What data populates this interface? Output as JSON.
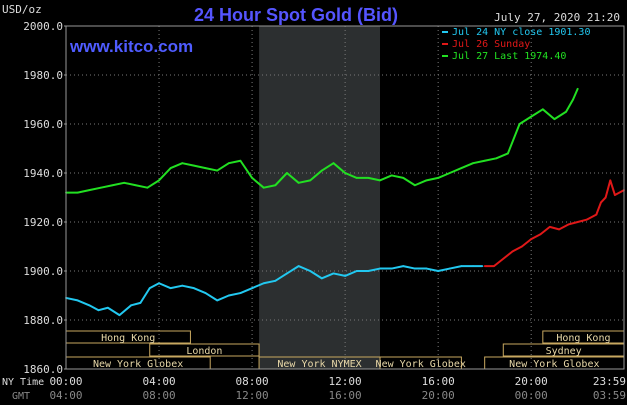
{
  "header": {
    "unit_label": "USD/oz",
    "title": "24 Hour Spot Gold (Bid)",
    "datetime": "July 27, 2020 21:20",
    "website": "www.kitco.com"
  },
  "legend": [
    {
      "label": "Jul 24 NY close 1901.30",
      "color": "#22c8f0"
    },
    {
      "label": "Jul 26 Sunday",
      "color": "#e01818"
    },
    {
      "label": "Jul 27 Last 1974.40",
      "color": "#22e022"
    }
  ],
  "colors": {
    "title": "#5555ff",
    "website": "#4f5cff",
    "axis_text": "#dddddd",
    "grid": "#7a7a7a",
    "shade": "#2c2f30",
    "session_border": "#c8a860"
  },
  "time_rows": {
    "ny_label": "NY Time",
    "gmt_label": "GMT",
    "ny_ticks": [
      "00:00",
      "04:00",
      "08:00",
      "12:00",
      "16:00",
      "20:00",
      "23:59"
    ],
    "gmt_ticks": [
      "04:00",
      "08:00",
      "12:00",
      "16:00",
      "20:00",
      "00:00",
      "03:59"
    ]
  },
  "sessions": [
    {
      "label": "Hong Kong",
      "row": 0,
      "start": 0,
      "end": 5.35
    },
    {
      "label": "Hong Kong",
      "row": 0,
      "start": 20.5,
      "end": 23.99
    },
    {
      "label": "London",
      "row": 1,
      "start": 3.6,
      "end": 8.3
    },
    {
      "label": "Sydney",
      "row": 1,
      "start": 18.8,
      "end": 23.99
    },
    {
      "label": "New York Globex",
      "row": 2,
      "start": 0,
      "end": 6.2
    },
    {
      "label": "New York NYMEX",
      "row": 2,
      "start": 8.3,
      "end": 13.5
    },
    {
      "label": "New York Globex",
      "row": 2,
      "start": 13.5,
      "end": 17.0
    },
    {
      "label": "New York Globex",
      "row": 2,
      "start": 18.0,
      "end": 23.99
    }
  ],
  "chart_data": {
    "type": "line",
    "title": "24 Hour Spot Gold (Bid)",
    "ylabel": "USD/oz",
    "xlabel": "NY Time",
    "xlim": [
      0,
      23.99
    ],
    "ylim": [
      1860,
      2000
    ],
    "y_ticks": [
      "1860.0",
      "1880.0",
      "1900.0",
      "1920.0",
      "1940.0",
      "1960.0",
      "1980.0",
      "2000.0"
    ],
    "grid": true,
    "legend_position": "top-right",
    "shaded_region": [
      8.3,
      13.5
    ],
    "series": [
      {
        "name": "Jul 24 NY close 1901.30",
        "color": "#22c8f0",
        "x": [
          0,
          0.5,
          1.0,
          1.4,
          1.8,
          2.3,
          2.8,
          3.2,
          3.6,
          4.0,
          4.5,
          5.0,
          5.5,
          6.0,
          6.5,
          7.0,
          7.5,
          8.0,
          8.5,
          9.0,
          9.5,
          10.0,
          10.5,
          11.0,
          11.5,
          12.0,
          12.5,
          13.0,
          13.5,
          14.0,
          14.5,
          15.0,
          15.5,
          16.0,
          16.5,
          17.0,
          17.5,
          17.9
        ],
        "y": [
          1889,
          1888,
          1886,
          1884,
          1885,
          1882,
          1886,
          1887,
          1893,
          1895,
          1893,
          1894,
          1893,
          1891,
          1888,
          1890,
          1891,
          1893,
          1895,
          1896,
          1899,
          1902,
          1900,
          1897,
          1899,
          1898,
          1900,
          1900,
          1901,
          1901,
          1902,
          1901,
          1901,
          1900,
          1901,
          1902,
          1902,
          1902
        ]
      },
      {
        "name": "Jul 26 Sunday",
        "color": "#e01818",
        "x": [
          18.0,
          18.4,
          18.8,
          19.2,
          19.6,
          20.0,
          20.4,
          20.8,
          21.2,
          21.6,
          22.0,
          22.4,
          22.8,
          23.0,
          23.2,
          23.4,
          23.6,
          23.99
        ],
        "y": [
          1902,
          1902,
          1905,
          1908,
          1910,
          1913,
          1915,
          1918,
          1917,
          1919,
          1920,
          1921,
          1923,
          1928,
          1930,
          1937,
          1931,
          1933
        ]
      },
      {
        "name": "Jul 27 Last 1974.40",
        "color": "#22e022",
        "x": [
          0,
          0.5,
          1.0,
          1.5,
          2.0,
          2.5,
          3.0,
          3.5,
          4.0,
          4.5,
          5.0,
          5.5,
          6.0,
          6.5,
          7.0,
          7.5,
          8.0,
          8.5,
          9.0,
          9.5,
          10.0,
          10.5,
          11.0,
          11.5,
          12.0,
          12.5,
          13.0,
          13.5,
          14.0,
          14.5,
          15.0,
          15.5,
          16.0,
          16.5,
          17.0,
          17.5,
          18.0,
          18.5,
          19.0,
          19.5,
          20.0,
          20.5,
          21.0,
          21.5,
          21.8,
          22.0
        ],
        "y": [
          1932,
          1932,
          1933,
          1934,
          1935,
          1936,
          1935,
          1934,
          1937,
          1942,
          1944,
          1943,
          1942,
          1941,
          1944,
          1945,
          1938,
          1934,
          1935,
          1940,
          1936,
          1937,
          1941,
          1944,
          1940,
          1938,
          1938,
          1937,
          1939,
          1938,
          1935,
          1937,
          1938,
          1940,
          1942,
          1944,
          1945,
          1946,
          1948,
          1960,
          1963,
          1966,
          1962,
          1965,
          1970,
          1974.4
        ]
      }
    ]
  }
}
